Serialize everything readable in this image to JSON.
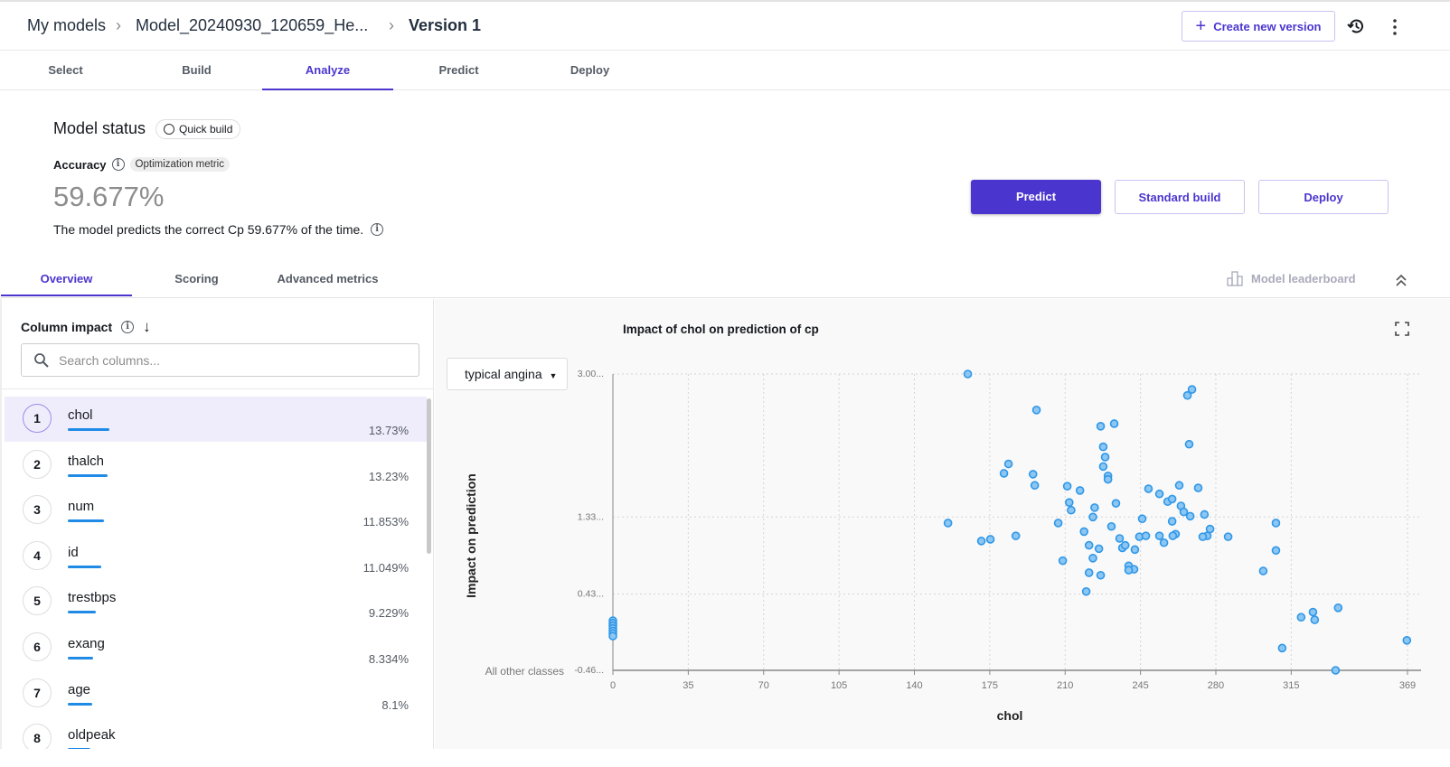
{
  "breadcrumb": {
    "items": [
      "My models",
      "Model_20240930_120659_He...",
      "Version 1"
    ]
  },
  "header": {
    "create_version_label": "Create new version",
    "history_icon": "history-icon",
    "more_icon": "more-vertical-icon"
  },
  "steps": [
    "Select",
    "Build",
    "Analyze",
    "Predict",
    "Deploy"
  ],
  "active_step": "Analyze",
  "status": {
    "title": "Model status",
    "build_badge": "Quick build",
    "metric_label": "Accuracy",
    "metric_badge": "Optimization metric",
    "metric_value": "59.677%",
    "description": "The model predicts the correct Cp 59.677% of the time."
  },
  "actions": {
    "predict": "Predict",
    "standard_build": "Standard build",
    "deploy": "Deploy"
  },
  "tabs": [
    "Overview",
    "Scoring",
    "Advanced metrics"
  ],
  "leaderboard_label": "Model leaderboard",
  "column_impact": {
    "title": "Column impact",
    "search_placeholder": "Search columns...",
    "columns": [
      {
        "rank": "1",
        "name": "chol",
        "value": "13.73%",
        "pct": 13.73
      },
      {
        "rank": "2",
        "name": "thalch",
        "value": "13.23%",
        "pct": 13.23
      },
      {
        "rank": "3",
        "name": "num",
        "value": "11.853%",
        "pct": 11.853
      },
      {
        "rank": "4",
        "name": "id",
        "value": "11.049%",
        "pct": 11.049
      },
      {
        "rank": "5",
        "name": "trestbps",
        "value": "9.229%",
        "pct": 9.229
      },
      {
        "rank": "6",
        "name": "exang",
        "value": "8.334%",
        "pct": 8.334
      },
      {
        "rank": "7",
        "name": "age",
        "value": "8.1%",
        "pct": 8.1
      },
      {
        "rank": "8",
        "name": "oldpeak",
        "value": "",
        "pct": 7.5
      }
    ]
  },
  "class_select": {
    "value": "typical angina"
  },
  "chart_data": {
    "type": "scatter",
    "title": "Impact of chol on prediction of cp",
    "xlabel": "chol",
    "ylabel": "Impact on prediction",
    "bottom_label": "All other classes",
    "xlim": [
      0,
      369
    ],
    "ylim": [
      -0.46,
      3.0
    ],
    "x_ticks": [
      0,
      35,
      70,
      105,
      140,
      175,
      210,
      245,
      280,
      315,
      369
    ],
    "y_ticks": [
      {
        "v": 3.0,
        "label": "3.00..."
      },
      {
        "v": 1.33,
        "label": "1.33..."
      },
      {
        "v": 0.43,
        "label": "0.43..."
      },
      {
        "v": -0.46,
        "label": "-0.46..."
      }
    ],
    "grid": true,
    "color": "#2f97e8",
    "points": [
      [
        0,
        0.12
      ],
      [
        0,
        0.09
      ],
      [
        0,
        0.06
      ],
      [
        0,
        0.03
      ],
      [
        0,
        0.0
      ],
      [
        0,
        -0.03
      ],
      [
        0,
        -0.06
      ],
      [
        164.8,
        3.0
      ],
      [
        268.9,
        2.82
      ],
      [
        266.8,
        2.75
      ],
      [
        196.7,
        2.58
      ],
      [
        226.5,
        2.39
      ],
      [
        232.8,
        2.42
      ],
      [
        227.7,
        2.15
      ],
      [
        228.6,
        2.03
      ],
      [
        227.7,
        1.92
      ],
      [
        267.6,
        2.18
      ],
      [
        183.7,
        1.95
      ],
      [
        181.6,
        1.84
      ],
      [
        195.1,
        1.83
      ],
      [
        195.9,
        1.7
      ],
      [
        229.9,
        1.81
      ],
      [
        229.9,
        1.77
      ],
      [
        211,
        1.69
      ],
      [
        216.9,
        1.64
      ],
      [
        248.7,
        1.66
      ],
      [
        253.8,
        1.6
      ],
      [
        257.6,
        1.51
      ],
      [
        259.7,
        1.54
      ],
      [
        263,
        1.7
      ],
      [
        271.8,
        1.67
      ],
      [
        233.6,
        1.49
      ],
      [
        211.9,
        1.5
      ],
      [
        212.8,
        1.41
      ],
      [
        223.7,
        1.44
      ],
      [
        222.9,
        1.33
      ],
      [
        263.8,
        1.46
      ],
      [
        265.1,
        1.39
      ],
      [
        268.1,
        1.34
      ],
      [
        274.7,
        1.36
      ],
      [
        245.8,
        1.31
      ],
      [
        206.8,
        1.26
      ],
      [
        155.6,
        1.26
      ],
      [
        259.7,
        1.28
      ],
      [
        235.3,
        1.08
      ],
      [
        218.8,
        1.16
      ],
      [
        231.5,
        1.22
      ],
      [
        277.3,
        1.19
      ],
      [
        276,
        1.11
      ],
      [
        273.9,
        1.1
      ],
      [
        285.7,
        1.1
      ],
      [
        307.9,
        1.26
      ],
      [
        307.9,
        0.94
      ],
      [
        171.1,
        1.05
      ],
      [
        175.3,
        1.07
      ],
      [
        187.1,
        1.11
      ],
      [
        221.1,
        1.0
      ],
      [
        225.7,
        0.96
      ],
      [
        222.9,
        0.85
      ],
      [
        221.1,
        0.68
      ],
      [
        208.9,
        0.82
      ],
      [
        242.4,
        0.95
      ],
      [
        239.5,
        0.76
      ],
      [
        242,
        0.72
      ],
      [
        239.5,
        0.71
      ],
      [
        236.6,
        0.97
      ],
      [
        237.9,
        1.0
      ],
      [
        244.5,
        1.1
      ],
      [
        247.5,
        1.11
      ],
      [
        255.9,
        1.03
      ],
      [
        253.8,
        1.11
      ],
      [
        261.3,
        1.13
      ],
      [
        260,
        1.11
      ],
      [
        226.5,
        0.65
      ],
      [
        219.8,
        0.46
      ],
      [
        302,
        0.7
      ],
      [
        319.6,
        0.16
      ],
      [
        325.1,
        0.22
      ],
      [
        325.9,
        0.13
      ],
      [
        336.8,
        0.27
      ],
      [
        310.8,
        -0.2
      ],
      [
        335.6,
        -0.46
      ],
      [
        368.7,
        -0.11
      ]
    ]
  }
}
